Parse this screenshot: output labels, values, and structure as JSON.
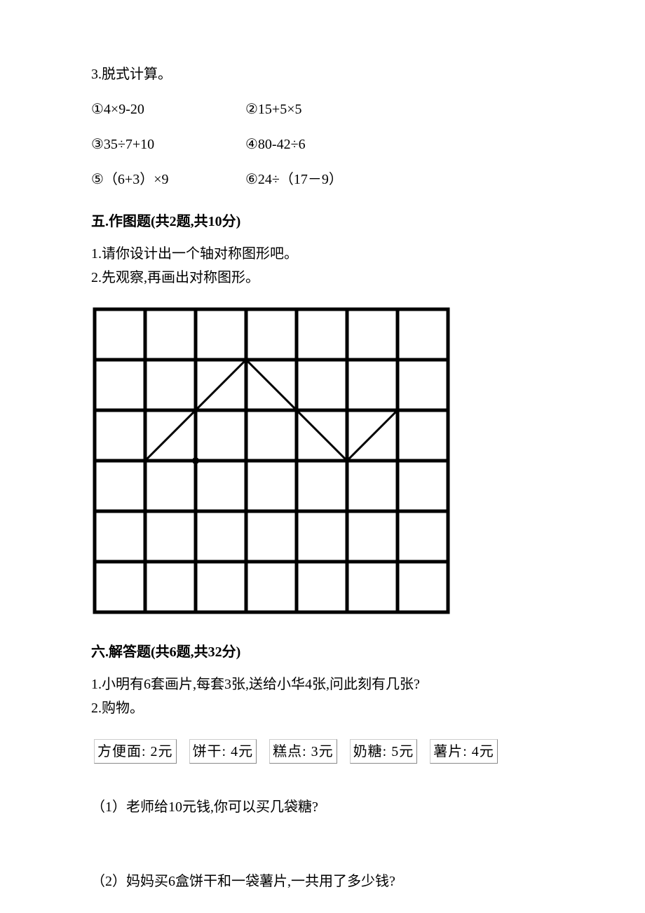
{
  "q3": {
    "title": "3.脱式计算。",
    "items": [
      [
        "①4×9-20",
        "②15+5×5"
      ],
      [
        "③35÷7+10",
        "④80-42÷6"
      ],
      [
        "⑤（6+3）×9",
        "⑥24÷（17－9）"
      ]
    ]
  },
  "section5": {
    "header": "五.作图题(共2题,共10分)",
    "q1": "1.请你设计出一个轴对称图形吧。",
    "q2": "2.先观察,再画出对称图形。"
  },
  "grid": {
    "cols": 7,
    "rows": 6,
    "cell": 72,
    "lineWidth": 5,
    "polyline": [
      [
        1,
        3
      ],
      [
        3,
        1
      ],
      [
        5,
        3
      ],
      [
        6,
        2
      ]
    ],
    "polylineWidth": 3,
    "markerCell": [
      2,
      3
    ],
    "markerRadius": 5,
    "colors": {
      "stroke": "#000000",
      "bg": "#ffffff"
    }
  },
  "section6": {
    "header": "六.解答题(共6题,共32分)",
    "q1": "1.小明有6套画片,每套3张,送给小华4张,问此刻有几张?",
    "q2": "2.购物。",
    "prices": [
      "方便面: 2元",
      "饼干: 4元",
      "糕点: 3元",
      "奶糖: 5元",
      "薯片: 4元"
    ],
    "sub1": "（1）老师给10元钱,你可以买几袋糖?",
    "sub2": "（2）妈妈买6盒饼干和一袋薯片,一共用了多少钱?"
  }
}
